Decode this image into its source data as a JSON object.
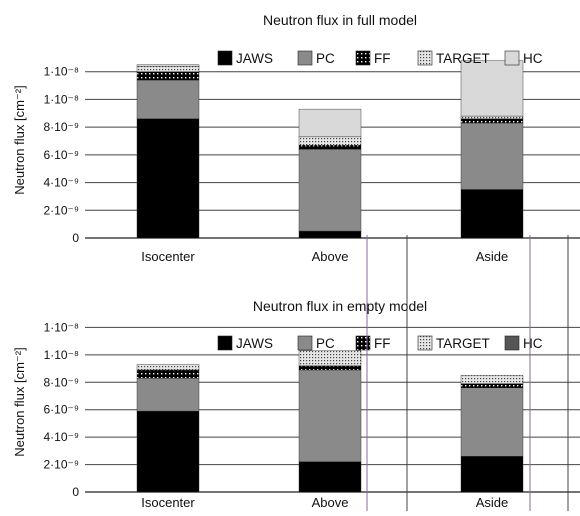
{
  "chart_data": [
    {
      "type": "bar",
      "stacked": true,
      "title": "Neutron flux in full model",
      "ylabel": "Neutron flux [cm⁻²]",
      "ylim": [
        0,
        1.4e-08
      ],
      "yticks": [
        {
          "value": 0,
          "label": "0"
        },
        {
          "value": 2e-09,
          "label": "2·10⁻⁹"
        },
        {
          "value": 4e-09,
          "label": "4·10⁻⁹"
        },
        {
          "value": 6e-09,
          "label": "6·10⁻⁹"
        },
        {
          "value": 8e-09,
          "label": "8·10⁻⁹"
        },
        {
          "value": 1e-08,
          "label": "1·10⁻⁸"
        },
        {
          "value": 1.2e-08,
          "label": "1·10⁻⁸"
        }
      ],
      "categories": [
        "Isocenter",
        "Above",
        "Aside"
      ],
      "series": [
        {
          "name": "JAWS",
          "color": "#000000",
          "pattern": "solid",
          "values": [
            8.6e-09,
            5e-10,
            3.5e-09
          ]
        },
        {
          "name": "PC",
          "color": "#8a8a8a",
          "pattern": "solid",
          "values": [
            2.8e-09,
            5.9e-09,
            4.8e-09
          ]
        },
        {
          "name": "FF",
          "color": "#000000",
          "pattern": "dots",
          "values": [
            6e-10,
            3e-10,
            3e-10
          ]
        },
        {
          "name": "TARGET",
          "color": "#c8c8c8",
          "pattern": "grid",
          "values": [
            4e-10,
            6e-10,
            2e-10
          ]
        },
        {
          "name": "HC",
          "color": "#d9d9d9",
          "pattern": "solid",
          "values": [
            1e-10,
            2e-09,
            4e-09
          ]
        }
      ],
      "grid": true,
      "legend": "top"
    },
    {
      "type": "bar",
      "stacked": true,
      "title": "Neutron flux in empty model",
      "ylabel": "Neutron flux [cm⁻²]",
      "ylim": [
        0,
        1.4e-08
      ],
      "yticks": [
        {
          "value": 0,
          "label": "0"
        },
        {
          "value": 2e-09,
          "label": "2·10⁻⁹"
        },
        {
          "value": 4e-09,
          "label": "4·10⁻⁹"
        },
        {
          "value": 6e-09,
          "label": "6·10⁻⁹"
        },
        {
          "value": 8e-09,
          "label": "8·10⁻⁹"
        },
        {
          "value": 1e-08,
          "label": "1·10⁻⁸"
        },
        {
          "value": 1.2e-08,
          "label": "1·10⁻⁸"
        }
      ],
      "categories": [
        "Isocenter",
        "Above",
        "Aside"
      ],
      "series": [
        {
          "name": "JAWS",
          "color": "#000000",
          "pattern": "solid",
          "values": [
            5.9e-09,
            2.2e-09,
            2.6e-09
          ]
        },
        {
          "name": "PC",
          "color": "#8a8a8a",
          "pattern": "solid",
          "values": [
            2.4e-09,
            6.7e-09,
            5e-09
          ]
        },
        {
          "name": "FF",
          "color": "#000000",
          "pattern": "dots",
          "values": [
            6e-10,
            3e-10,
            3e-10
          ]
        },
        {
          "name": "TARGET",
          "color": "#c8c8c8",
          "pattern": "grid",
          "values": [
            4e-10,
            1.1e-09,
            6e-10
          ]
        },
        {
          "name": "HC",
          "color": "#555555",
          "pattern": "solid",
          "values": [
            0,
            0,
            0
          ]
        }
      ],
      "grid": true,
      "legend": "top"
    }
  ]
}
